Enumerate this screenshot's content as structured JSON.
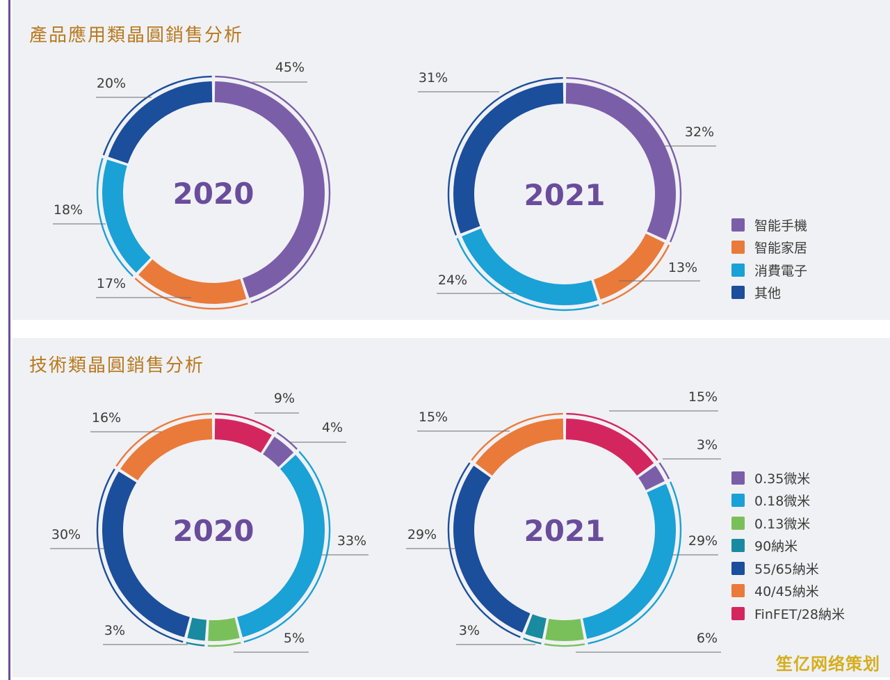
{
  "titles": {
    "product": "產品應用類晶圓銷售分析",
    "tech": "技術類晶圓銷售分析"
  },
  "watermark": "笙亿网络策划",
  "legend_product": [
    {
      "label": "智能手機",
      "color": "#7b5ea8"
    },
    {
      "label": "智能家居",
      "color": "#e97a3a"
    },
    {
      "label": "消費電子",
      "color": "#1aa1d6"
    },
    {
      "label": "其他",
      "color": "#1b4e9b"
    }
  ],
  "legend_tech": [
    {
      "label": "0.35微米",
      "color": "#7b5ea8"
    },
    {
      "label": "0.18微米",
      "color": "#1aa1d6"
    },
    {
      "label": "0.13微米",
      "color": "#79c05a"
    },
    {
      "label": "90納米",
      "color": "#1a8aa0"
    },
    {
      "label": "55/65納米",
      "color": "#1b4e9b"
    },
    {
      "label": "40/45納米",
      "color": "#e97a3a"
    },
    {
      "label": "FinFET/28納米",
      "color": "#d4265e"
    }
  ],
  "chart_data": [
    {
      "type": "pie",
      "title": "產品應用類晶圓銷售分析",
      "center_label": "2020",
      "slices": [
        {
          "name": "智能手機",
          "value": 45,
          "label": "45%",
          "color": "#7b5ea8"
        },
        {
          "name": "智能家居",
          "value": 17,
          "label": "17%",
          "color": "#e97a3a"
        },
        {
          "name": "消費電子",
          "value": 18,
          "label": "18%",
          "color": "#1aa1d6"
        },
        {
          "name": "其他",
          "value": 20,
          "label": "20%",
          "color": "#1b4e9b"
        }
      ]
    },
    {
      "type": "pie",
      "title": "產品應用類晶圓銷售分析",
      "center_label": "2021",
      "slices": [
        {
          "name": "智能手機",
          "value": 32,
          "label": "32%",
          "color": "#7b5ea8"
        },
        {
          "name": "智能家居",
          "value": 13,
          "label": "13%",
          "color": "#e97a3a"
        },
        {
          "name": "消費電子",
          "value": 24,
          "label": "24%",
          "color": "#1aa1d6"
        },
        {
          "name": "其他",
          "value": 31,
          "label": "31%",
          "color": "#1b4e9b"
        }
      ]
    },
    {
      "type": "pie",
      "title": "技術類晶圓銷售分析",
      "center_label": "2020",
      "slices": [
        {
          "name": "FinFET/28納米",
          "value": 9,
          "label": "9%",
          "color": "#d4265e"
        },
        {
          "name": "0.35微米",
          "value": 4,
          "label": "4%",
          "color": "#7b5ea8"
        },
        {
          "name": "0.18微米",
          "value": 33,
          "label": "33%",
          "color": "#1aa1d6"
        },
        {
          "name": "0.13微米",
          "value": 5,
          "label": "5%",
          "color": "#79c05a"
        },
        {
          "name": "90納米",
          "value": 3,
          "label": "3%",
          "color": "#1a8aa0"
        },
        {
          "name": "55/65納米",
          "value": 30,
          "label": "30%",
          "color": "#1b4e9b"
        },
        {
          "name": "40/45納米",
          "value": 16,
          "label": "16%",
          "color": "#e97a3a"
        }
      ]
    },
    {
      "type": "pie",
      "title": "技術類晶圓銷售分析",
      "center_label": "2021",
      "slices": [
        {
          "name": "FinFET/28納米",
          "value": 15,
          "label": "15%",
          "color": "#d4265e"
        },
        {
          "name": "0.35微米",
          "value": 3,
          "label": "3%",
          "color": "#7b5ea8"
        },
        {
          "name": "0.18微米",
          "value": 29,
          "label": "29%",
          "color": "#1aa1d6"
        },
        {
          "name": "0.13微米",
          "value": 6,
          "label": "6%",
          "color": "#79c05a"
        },
        {
          "name": "90納米",
          "value": 3,
          "label": "3%",
          "color": "#1a8aa0"
        },
        {
          "name": "55/65納米",
          "value": 29,
          "label": "29%",
          "color": "#1b4e9b"
        },
        {
          "name": "40/45納米",
          "value": 15,
          "label": "15%",
          "color": "#e97a3a"
        }
      ]
    }
  ]
}
